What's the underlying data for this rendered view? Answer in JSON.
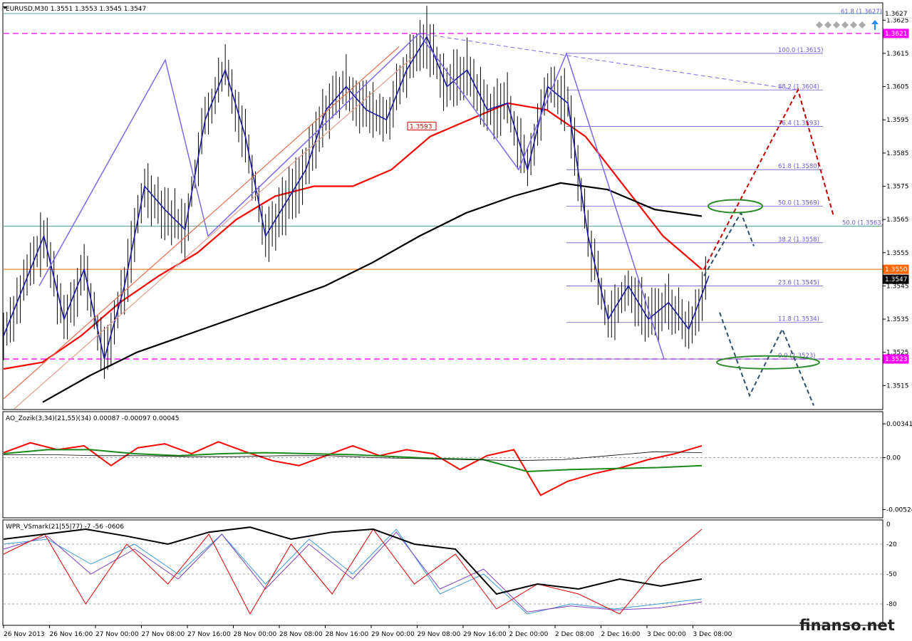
{
  "chart_data": {
    "type": "line",
    "symbol_header": "EURUSD,M30  1.3551 1.3553 1.3545 1.3547",
    "price_axis": {
      "min": 1.3508,
      "max": 1.363,
      "ticks": [
        "1.3625",
        "1.3615",
        "1.3605",
        "1.3595",
        "1.3585",
        "1.3575",
        "1.3565",
        "1.3555",
        "1.3545",
        "1.3535",
        "1.3525",
        "1.3515"
      ]
    },
    "time_axis_labels": [
      "26 Nov 2013",
      "26 Nov 16:00",
      "27 Nov 00:00",
      "27 Nov 08:00",
      "27 Nov 16:00",
      "28 Nov 00:00",
      "28 Nov 08:00",
      "28 Nov 16:00",
      "29 Nov 00:00",
      "29 Nov 08:00",
      "29 Nov 16:00",
      "2 Dec 00:00",
      "2 Dec 08:00",
      "2 Dec 16:00",
      "3 Dec 00:00",
      "3 Dec 08:00"
    ],
    "price_series": [
      {
        "name": "",
        "values": [
          1.353,
          1.3545,
          1.356,
          1.3535,
          1.355,
          1.3523,
          1.3545,
          1.3575,
          1.3568,
          1.3562,
          1.3595,
          1.361,
          1.359,
          1.356,
          1.357,
          1.358,
          1.3598,
          1.3605,
          1.3598,
          1.3595,
          1.361,
          1.362,
          1.3605,
          1.361,
          1.3598,
          1.36,
          1.358,
          1.3605,
          1.36,
          1.356,
          1.3535,
          1.3545,
          1.3535,
          1.354,
          1.3532,
          1.3548
        ]
      }
    ],
    "moving_averages": [
      {
        "name": "",
        "color": "#ff0000",
        "values": [
          1.352,
          1.3522,
          1.353,
          1.354,
          1.3548,
          1.3555,
          1.3565,
          1.3572,
          1.3575,
          1.3575,
          1.358,
          1.359,
          1.3595,
          1.36,
          1.3598,
          1.359,
          1.3575,
          1.356,
          1.355
        ]
      },
      {
        "name": "",
        "color": "#000000",
        "values": [
          1.351,
          1.3518,
          1.3525,
          1.353,
          1.3535,
          1.354,
          1.3545,
          1.3552,
          1.356,
          1.3567,
          1.3572,
          1.3576,
          1.3574,
          1.3568,
          1.3566
        ]
      }
    ],
    "horizontal_levels": [
      {
        "price": "1.3621",
        "color": "#ff00ff",
        "style": "dashed"
      },
      {
        "price": "1.3523",
        "color": "#ff00ff",
        "style": "dashed"
      },
      {
        "price": "1.3550",
        "color": "#ff6600",
        "style": "solid"
      },
      {
        "price": "1.3563",
        "color": "#5aa0a0",
        "style": "solid"
      },
      {
        "price": "1.3627",
        "color": "#5aa0a0",
        "style": "solid"
      }
    ],
    "price_labels": [
      {
        "text": "1.3627",
        "bg": "#ffffff",
        "fg": "#000000"
      },
      {
        "text": "1.3621",
        "bg": "#ff00ff",
        "fg": "#ffffff"
      },
      {
        "text": "1.3550",
        "bg": "#ff6600",
        "fg": "#ffffff"
      },
      {
        "text": "1.3547",
        "bg": "#000000",
        "fg": "#ffffff"
      },
      {
        "text": "1.3523",
        "bg": "#ff00ff",
        "fg": "#ffffff"
      }
    ],
    "fibonacci_levels": [
      "100.0 (1.3615)",
      "88.2 (1.3604)",
      "76.4 (1.3593)",
      "61.8 (1.3580)",
      "50.0 (1.3569)",
      "38.2 (1.3558)",
      "23.6 (1.3545)",
      "11.8 (1.3534)",
      "0.0 (1.3523)"
    ],
    "extra_fib_labels": [
      "61.8 (1.3627)",
      "50.0 (1.3563)"
    ],
    "marker_label": "1.3593",
    "ao_indicator": {
      "title": "AO_Zozik(3,34)(21,55)(34) 0.00087 -0.00097 0.00045",
      "ticks": [
        "0.00341",
        "0.00",
        "-0.00524"
      ],
      "red": [
        0.0005,
        0.0015,
        0.0008,
        0.0012,
        -0.0008,
        0.001,
        0.0014,
        0.0004,
        0.0016,
        0.0006,
        -0.0003,
        -0.0008,
        0.0002,
        0.0012,
        0.0002,
        0.0008,
        0.0004,
        -0.0012,
        0.0002,
        0.0008,
        -0.0038,
        -0.0024,
        -0.0016,
        -0.001,
        -0.0002,
        0.0004,
        0.0012
      ],
      "green": [
        0.0004,
        0.0008,
        0.0008,
        0.0004,
        0.0002,
        0.0004,
        0.0005,
        0.0004,
        0.0003,
        0.0001,
        -0.0001,
        -0.0002,
        -0.0014,
        -0.0012,
        -0.0011,
        -0.001,
        -0.0008
      ],
      "black": [
        0.0003,
        0.0003,
        0.0002,
        0.0002,
        0.0001,
        0.0001,
        0.0002,
        0.0002,
        0.0,
        -0.0001,
        -0.0002,
        -0.0003,
        -0.0002,
        0.0002,
        0.0006,
        0.0005
      ]
    },
    "wpr_indicator": {
      "title": "WPR_VSmark(21|55|77) -7 -56 -0606",
      "ticks": [
        "0",
        "-20",
        "-50",
        "-80"
      ],
      "black": [
        -15,
        -10,
        -5,
        -12,
        -20,
        -8,
        -3,
        -15,
        -8,
        -5,
        -20,
        -25,
        -70,
        -60,
        -65,
        -55,
        -62,
        -55
      ],
      "red": [
        -30,
        -10,
        -80,
        -20,
        -60,
        -10,
        -90,
        -20,
        -70,
        -5,
        -60,
        -30,
        -85,
        -60,
        -70,
        -90,
        -40,
        -5
      ],
      "blue": [
        -20,
        -15,
        -40,
        -20,
        -50,
        -10,
        -60,
        -15,
        -50,
        -5,
        -70,
        -50,
        -90,
        -80,
        -85,
        -80,
        -75
      ],
      "purple": [
        -25,
        -12,
        -50,
        -25,
        -55,
        -10,
        -65,
        -20,
        -55,
        -8,
        -65,
        -45,
        -88,
        -82,
        -86,
        -84,
        -78
      ]
    }
  },
  "watermark": "finanso.net"
}
